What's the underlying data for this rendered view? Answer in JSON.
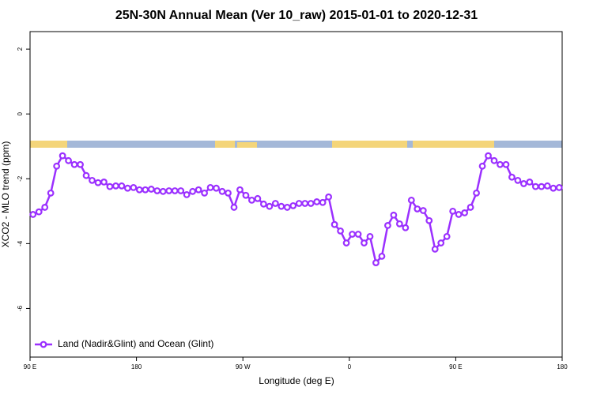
{
  "chart_data": {
    "type": "line",
    "title": "25N-30N Annual Mean (Ver 10_raw)   2015-01-01 to 2020-12-31",
    "x_label": "Longitude (deg E)",
    "y_label": "XCO2 - MLO trend (ppm)",
    "xlim": [
      90,
      540
    ],
    "xticks": [
      {
        "value": 90,
        "label": "90 E"
      },
      {
        "value": 180,
        "label": "180"
      },
      {
        "value": 270,
        "label": "90 W"
      },
      {
        "value": 360,
        "label": "0"
      },
      {
        "value": 450,
        "label": "90 E"
      },
      {
        "value": 540,
        "label": "180"
      }
    ],
    "ylim": [
      -7.5,
      2.54
    ],
    "yticks": [
      -6,
      -4,
      -2,
      0,
      2
    ],
    "legend": "bottom-left",
    "x": [
      92.5,
      97.5,
      102.5,
      107.5,
      112.5,
      117.5,
      122.5,
      127.5,
      132.5,
      137.5,
      142.5,
      147.5,
      152.5,
      157.5,
      162.5,
      167.5,
      172.5,
      177.5,
      182.5,
      187.5,
      192.5,
      197.5,
      202.5,
      207.5,
      212.5,
      217.5,
      222.5,
      227.5,
      232.5,
      237.5,
      242.5,
      247.5,
      252.5,
      257.5,
      262.5,
      267.5,
      272.5,
      277.5,
      282.5,
      287.5,
      292.5,
      297.5,
      302.5,
      307.5,
      312.5,
      317.5,
      322.5,
      327.5,
      332.5,
      337.5,
      342.5,
      347.5,
      352.5,
      357.5,
      362.5,
      367.5,
      372.5,
      377.5,
      382.5,
      387.5,
      392.5,
      397.5,
      402.5,
      407.5,
      412.5,
      417.5,
      422.5,
      427.5,
      432.5,
      437.5,
      442.5,
      447.5,
      452.5,
      457.5,
      462.5,
      467.5,
      472.5,
      477.5,
      482.5,
      487.5,
      492.5,
      497.5,
      502.5,
      507.5,
      512.5,
      517.5,
      522.5,
      527.5,
      532.5,
      537.5
    ],
    "series": [
      {
        "name": "Land (Nadir&Glint) and Ocean (Glint)",
        "color": "#9b30ff",
        "values": [
          -3.1,
          -3.02,
          -2.88,
          -2.44,
          -1.61,
          -1.29,
          -1.44,
          -1.56,
          -1.56,
          -1.9,
          -2.05,
          -2.12,
          -2.1,
          -2.24,
          -2.22,
          -2.22,
          -2.29,
          -2.27,
          -2.34,
          -2.34,
          -2.32,
          -2.37,
          -2.39,
          -2.37,
          -2.37,
          -2.37,
          -2.49,
          -2.39,
          -2.34,
          -2.44,
          -2.27,
          -2.29,
          -2.39,
          -2.44,
          -2.88,
          -2.34,
          -2.51,
          -2.66,
          -2.61,
          -2.78,
          -2.85,
          -2.76,
          -2.85,
          -2.88,
          -2.83,
          -2.76,
          -2.76,
          -2.76,
          -2.71,
          -2.73,
          -2.56,
          -3.41,
          -3.61,
          -3.98,
          -3.71,
          -3.71,
          -3.98,
          -3.78,
          -4.59,
          -4.39,
          -3.44,
          -3.12,
          -3.39,
          -3.51,
          -2.66,
          -2.93,
          -2.98,
          -3.29,
          -4.17,
          -3.98,
          -3.78,
          -3.0,
          -3.1,
          -3.05,
          -2.88,
          -2.44,
          -1.61,
          -1.29,
          -1.44,
          -1.56,
          -1.56,
          -1.95,
          -2.05,
          -2.15,
          -2.1,
          -2.24,
          -2.24,
          -2.22,
          -2.29,
          -2.27
        ]
      }
    ]
  }
}
